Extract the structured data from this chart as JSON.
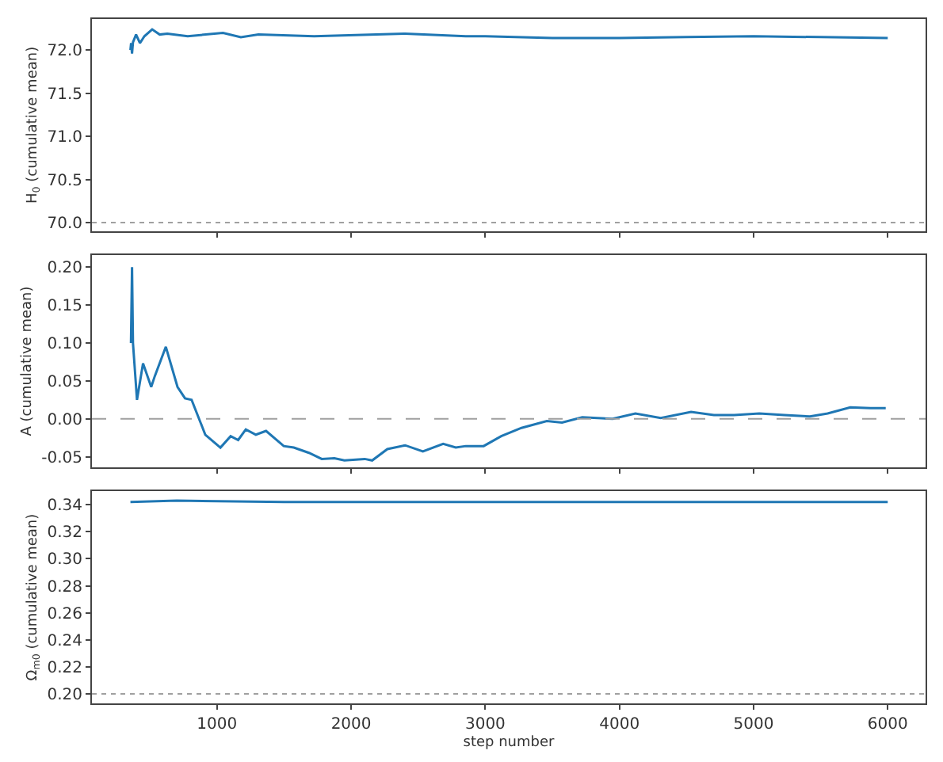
{
  "chart_data": [
    {
      "type": "line",
      "ylabel": "H$_{0}$ (cumulative mean)",
      "x": [
        355,
        360,
        367,
        374,
        397,
        426,
        459,
        517,
        573,
        630,
        782,
        1045,
        1178,
        1309,
        1724,
        2403,
        2855,
        3000,
        3500,
        4000,
        4500,
        5000,
        5500,
        6000
      ],
      "series": [
        {
          "color": "#1f77b4",
          "values": [
            72.0,
            72.08,
            71.96,
            72.09,
            72.18,
            72.08,
            72.16,
            72.24,
            72.18,
            72.19,
            72.16,
            72.2,
            72.15,
            72.18,
            72.16,
            72.19,
            72.16,
            72.16,
            72.14,
            72.14,
            72.15,
            72.16,
            72.15,
            72.14
          ]
        }
      ],
      "xlim": [
        68,
        6282
      ],
      "xticks": [
        1000,
        2000,
        3000,
        4000,
        5000,
        6000
      ],
      "ylim": [
        69.9,
        72.36
      ],
      "yticks": [
        {
          "value": 70,
          "label": "70.0"
        },
        70.5,
        {
          "value": 71,
          "label": "71.0"
        },
        71.5,
        {
          "value": 72,
          "label": "72.0"
        }
      ],
      "tick_labels": "y",
      "ref_lines": [
        {
          "axis": "y",
          "value": 70.0,
          "color": "#a0a0a0",
          "line_style": "dotted"
        }
      ]
    },
    {
      "type": "line",
      "ylabel": "A (cumulative mean)",
      "x": [
        359,
        367,
        374,
        404,
        449,
        510,
        536,
        619,
        706,
        762,
        811,
        913,
        1026,
        1102,
        1158,
        1215,
        1290,
        1366,
        1498,
        1573,
        1686,
        1781,
        1875,
        1950,
        2101,
        2157,
        2270,
        2403,
        2535,
        2686,
        2780,
        2855,
        2988,
        3119,
        3270,
        3459,
        3572,
        3723,
        3836,
        3949,
        4119,
        4308,
        4534,
        4704,
        4855,
        5043,
        5231,
        5420,
        5552,
        5721,
        5872,
        5985
      ],
      "series": [
        {
          "color": "#1f77b4",
          "values": [
            0.1,
            0.2,
            0.1,
            0.025,
            0.073,
            0.042,
            0.056,
            0.095,
            0.042,
            0.027,
            0.025,
            -0.021,
            -0.038,
            -0.023,
            -0.028,
            -0.014,
            -0.021,
            -0.016,
            -0.036,
            -0.038,
            -0.045,
            -0.053,
            -0.052,
            -0.055,
            -0.053,
            -0.055,
            -0.04,
            -0.035,
            -0.043,
            -0.033,
            -0.038,
            -0.036,
            -0.036,
            -0.023,
            -0.012,
            -0.003,
            -0.005,
            0.002,
            0.001,
            0.0,
            0.007,
            0.001,
            0.009,
            0.005,
            0.005,
            0.007,
            0.005,
            0.003,
            0.007,
            0.015,
            0.014,
            0.014
          ]
        }
      ],
      "xlim": [
        68,
        6282
      ],
      "xticks": [
        1000,
        2000,
        3000,
        4000,
        5000,
        6000
      ],
      "ylim": [
        -0.064,
        0.216
      ],
      "yticks": [
        -0.05,
        {
          "value": 0,
          "label": "0.00"
        },
        0.05,
        {
          "value": 0.1,
          "label": "0.10"
        },
        0.15,
        {
          "value": 0.2,
          "label": "0.20"
        }
      ],
      "tick_labels": "y",
      "ref_lines": [
        {
          "axis": "y",
          "value": 0.0,
          "color": "#a0a0a0",
          "line_style": "dashed"
        }
      ]
    },
    {
      "type": "line",
      "ylabel": "Ω$_{m0}$ (cumulative mean)",
      "xlabel": "step number",
      "x": [
        355,
        700,
        1500,
        3000,
        4500,
        6000
      ],
      "series": [
        {
          "color": "#1f77b4",
          "values": [
            0.342,
            0.343,
            0.342,
            0.342,
            0.342,
            0.342
          ]
        }
      ],
      "xlim": [
        68,
        6282
      ],
      "xticks": [
        1000,
        2000,
        3000,
        4000,
        5000,
        6000
      ],
      "ylim": [
        0.193,
        0.35
      ],
      "yticks": [
        {
          "value": 0.2,
          "label": "0.20"
        },
        0.22,
        0.24,
        0.26,
        0.28,
        {
          "value": 0.3,
          "label": "0.30"
        },
        0.32,
        0.34
      ],
      "ref_lines": [
        {
          "axis": "y",
          "value": 0.2,
          "color": "#a0a0a0",
          "line_style": "dotted"
        }
      ]
    }
  ]
}
